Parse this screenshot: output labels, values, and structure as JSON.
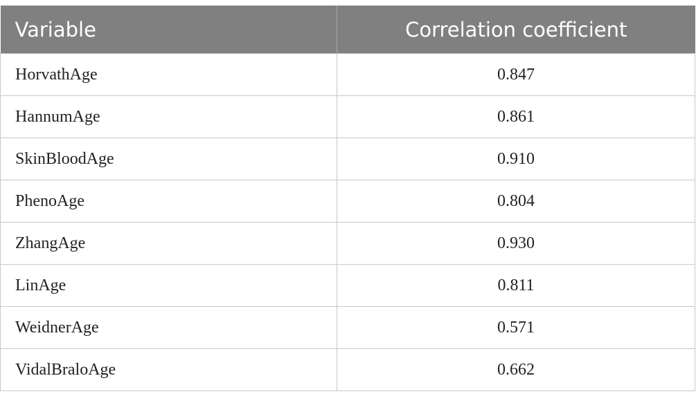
{
  "table": {
    "header": [
      "Variable",
      "Correlation coefficient"
    ],
    "rows": [
      [
        "HorvathAge",
        "0.847"
      ],
      [
        "HannumAge",
        "0.861"
      ],
      [
        "SkinBloodAge",
        "0.910"
      ],
      [
        "PhenoAge",
        "0.804"
      ],
      [
        "ZhangAge",
        "0.930"
      ],
      [
        "LinAge",
        "0.811"
      ],
      [
        "WeidnerAge",
        "0.571"
      ],
      [
        "VidalBraloAge",
        "0.662"
      ]
    ]
  }
}
